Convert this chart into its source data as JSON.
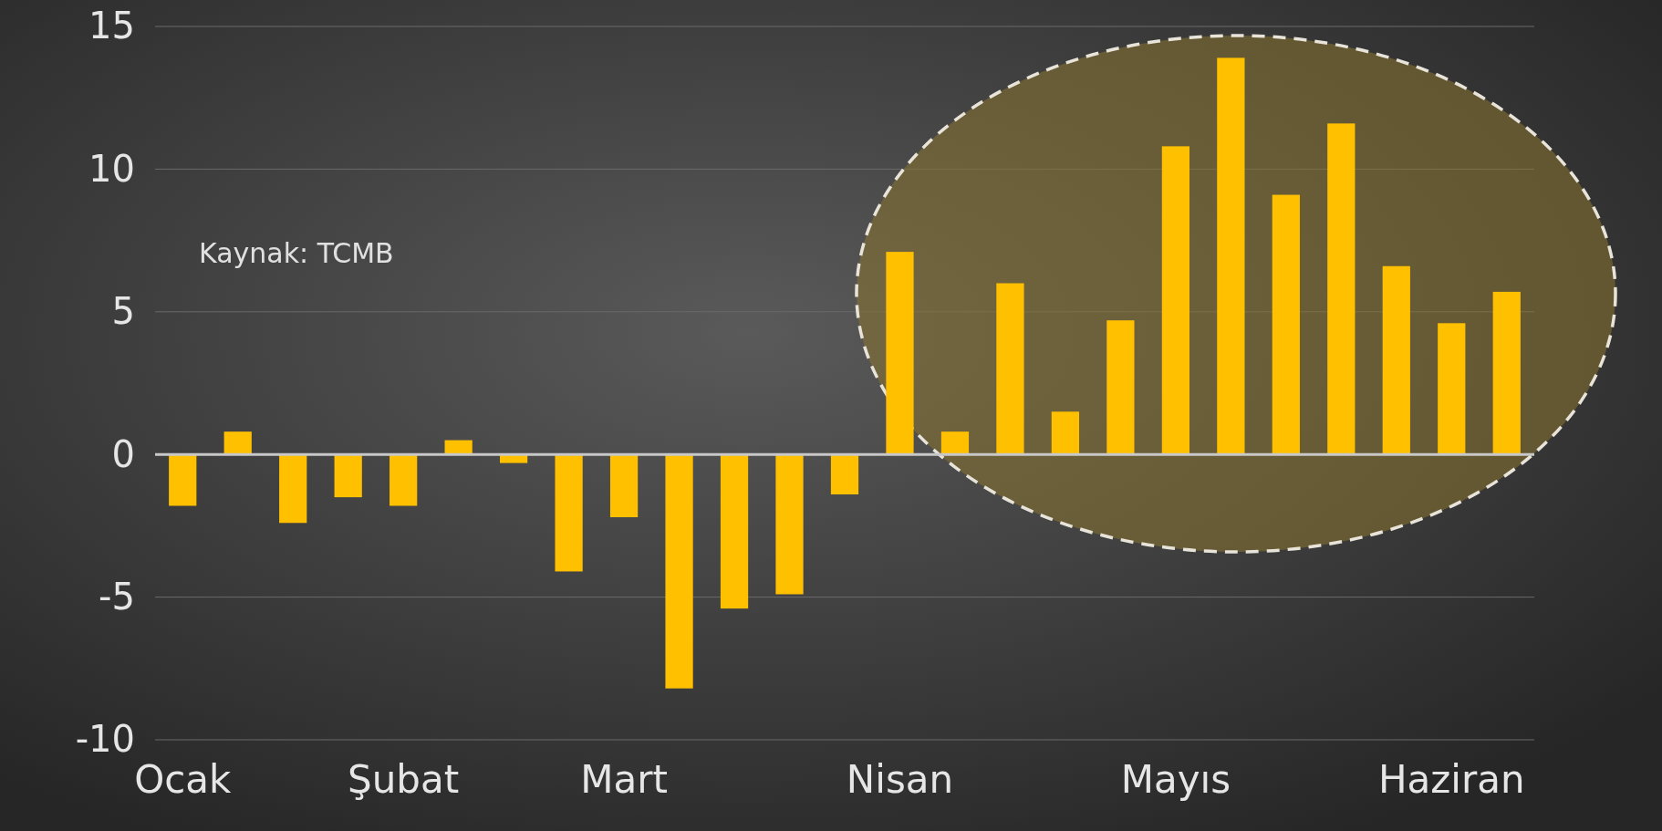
{
  "chart_data": {
    "type": "bar",
    "categories": [
      "Ocak",
      null,
      null,
      null,
      "Şubat",
      null,
      null,
      null,
      "Mart",
      null,
      null,
      null,
      null,
      "Nisan",
      null,
      null,
      null,
      null,
      "Mayıs",
      null,
      null,
      null,
      null,
      "Haziran",
      null
    ],
    "values": [
      -1.8,
      0.8,
      -2.4,
      -1.5,
      -1.8,
      0.5,
      -0.3,
      -4.1,
      -2.2,
      -8.2,
      -5.4,
      -4.9,
      -1.4,
      7.1,
      0.8,
      6.0,
      1.5,
      4.7,
      10.8,
      13.9,
      9.1,
      11.6,
      6.6,
      4.6,
      5.7
    ],
    "color": "#ffc000",
    "ylim": [
      -10,
      15
    ],
    "yticks": [
      -10,
      -5,
      0,
      5,
      10,
      15
    ],
    "grid": "y",
    "annotations": [
      "Kaynak: TCMB"
    ]
  }
}
